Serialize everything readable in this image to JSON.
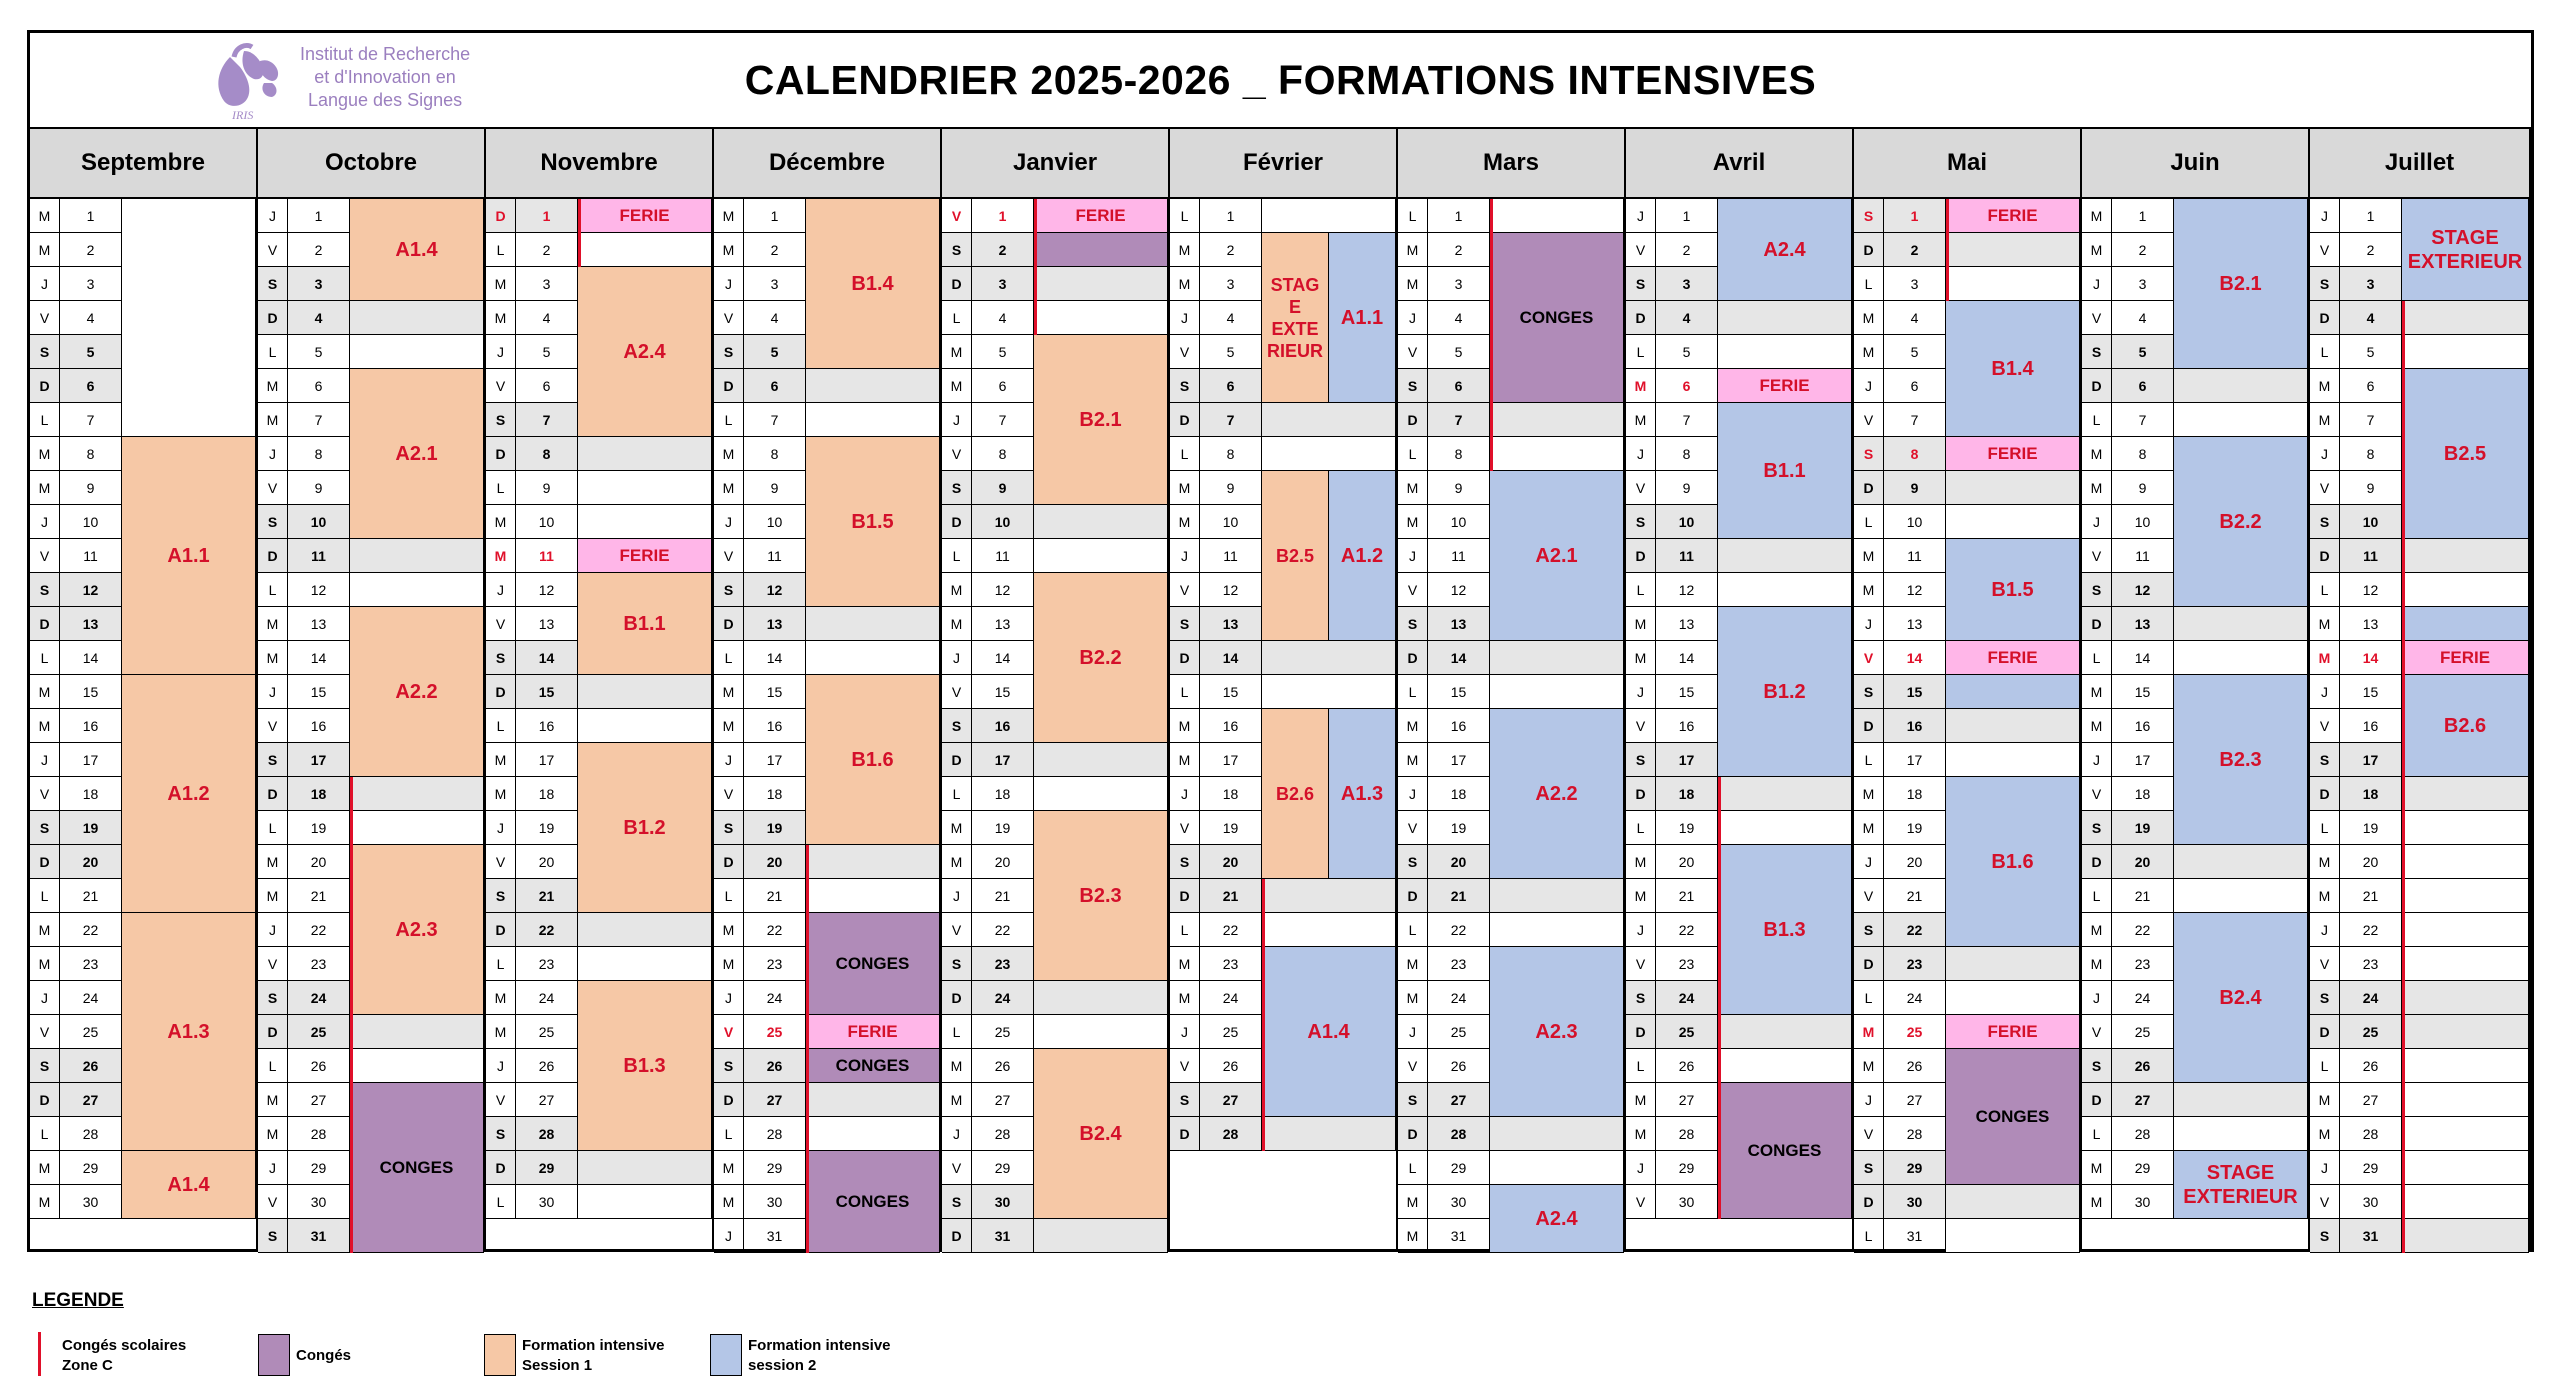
{
  "header": {
    "title": "CALENDRIER 2025-2026 _ FORMATIONS INTENSIVES",
    "logo_lines": [
      "Institut de Recherche",
      "et d'Innovation en",
      "Langue des Signes"
    ],
    "logo_acronym": "IRIS"
  },
  "colors": {
    "session1": "#f6c8a6",
    "session2": "#b4c6e7",
    "conges": "#b08bb8",
    "ferie": "#ffb6e8",
    "weekend": "#e6e6e6",
    "vacances_line": "#e0102a"
  },
  "months": [
    {
      "name": "Septembre",
      "days": 30,
      "start": 1,
      "holidays": [],
      "blocks": [
        {
          "from": 1,
          "to": 7,
          "type": "w",
          "label": ""
        },
        {
          "from": 8,
          "to": 14,
          "type": "s1",
          "label": "A1.1"
        },
        {
          "from": 15,
          "to": 21,
          "type": "s1",
          "label": "A1.2"
        },
        {
          "from": 22,
          "to": 28,
          "type": "s1",
          "label": "A1.3"
        },
        {
          "from": 29,
          "to": 30,
          "type": "s1",
          "label": "A1.4"
        }
      ],
      "vac": []
    },
    {
      "name": "Octobre",
      "days": 31,
      "start": 3,
      "holidays": [],
      "blocks": [
        {
          "from": 1,
          "to": 3,
          "type": "s1",
          "label": "A1.4"
        },
        {
          "from": 6,
          "to": 10,
          "type": "s1",
          "label": "A2.1"
        },
        {
          "from": 13,
          "to": 17,
          "type": "s1",
          "label": "A2.2"
        },
        {
          "from": 20,
          "to": 24,
          "type": "s1",
          "label": "A2.3"
        },
        {
          "from": 27,
          "to": 31,
          "type": "cg",
          "label": "CONGES"
        }
      ],
      "vac": [
        [
          18,
          31
        ]
      ]
    },
    {
      "name": "Novembre",
      "days": 30,
      "start": 6,
      "holidays": [
        1,
        11
      ],
      "blocks": [
        {
          "from": 1,
          "to": 1,
          "type": "fe",
          "label": "FERIE"
        },
        {
          "from": 3,
          "to": 7,
          "type": "s1",
          "label": "A2.4"
        },
        {
          "from": 11,
          "to": 11,
          "type": "fe",
          "label": "FERIE"
        },
        {
          "from": 12,
          "to": 14,
          "type": "s1",
          "label": "B1.1"
        },
        {
          "from": 17,
          "to": 21,
          "type": "s1",
          "label": "B1.2"
        },
        {
          "from": 24,
          "to": 28,
          "type": "s1",
          "label": "B1.3"
        }
      ],
      "vac": [
        [
          1,
          2
        ]
      ]
    },
    {
      "name": "Décembre",
      "days": 31,
      "start": 1,
      "holidays": [
        25
      ],
      "blocks": [
        {
          "from": 1,
          "to": 5,
          "type": "s1",
          "label": "B1.4"
        },
        {
          "from": 8,
          "to": 12,
          "type": "s1",
          "label": "B1.5"
        },
        {
          "from": 15,
          "to": 19,
          "type": "s1",
          "label": "B1.6"
        },
        {
          "from": 22,
          "to": 24,
          "type": "cg",
          "label": "CONGES"
        },
        {
          "from": 25,
          "to": 25,
          "type": "fe",
          "label": "FERIE"
        },
        {
          "from": 26,
          "to": 26,
          "type": "cg",
          "label": "CONGES"
        },
        {
          "from": 29,
          "to": 31,
          "type": "cg",
          "label": "CONGES"
        }
      ],
      "vac": [
        [
          20,
          31
        ]
      ]
    },
    {
      "name": "Janvier",
      "days": 31,
      "start": 4,
      "holidays": [
        1
      ],
      "blocks": [
        {
          "from": 1,
          "to": 1,
          "type": "fe",
          "label": "FERIE"
        },
        {
          "from": 2,
          "to": 2,
          "type": "cg",
          "label": ""
        },
        {
          "from": 5,
          "to": 9,
          "type": "s1",
          "label": "B2.1"
        },
        {
          "from": 12,
          "to": 16,
          "type": "s1",
          "label": "B2.2"
        },
        {
          "from": 19,
          "to": 23,
          "type": "s1",
          "label": "B2.3"
        },
        {
          "from": 26,
          "to": 30,
          "type": "s1",
          "label": "B2.4"
        }
      ],
      "vac": [
        [
          1,
          4
        ]
      ]
    },
    {
      "name": "Février",
      "days": 28,
      "start": 0,
      "holidays": [],
      "blocks": [
        {
          "from": 2,
          "to": 6,
          "type": "s1",
          "label": "STAG E EXTE RIEUR",
          "half": "left"
        },
        {
          "from": 2,
          "to": 6,
          "type": "s2",
          "label": "A1.1",
          "half": "right"
        },
        {
          "from": 9,
          "to": 13,
          "type": "s1",
          "label": "B2.5",
          "half": "left"
        },
        {
          "from": 9,
          "to": 13,
          "type": "s2",
          "label": "A1.2",
          "half": "right"
        },
        {
          "from": 16,
          "to": 20,
          "type": "s1",
          "label": "B2.6",
          "half": "left"
        },
        {
          "from": 16,
          "to": 20,
          "type": "s2",
          "label": "A1.3",
          "half": "right"
        },
        {
          "from": 23,
          "to": 27,
          "type": "s2",
          "label": "A1.4"
        }
      ],
      "vac": [
        [
          21,
          28
        ]
      ]
    },
    {
      "name": "Mars",
      "days": 31,
      "start": 0,
      "holidays": [],
      "blocks": [
        {
          "from": 2,
          "to": 6,
          "type": "cg",
          "label": "CONGES"
        },
        {
          "from": 9,
          "to": 13,
          "type": "s2",
          "label": "A2.1"
        },
        {
          "from": 16,
          "to": 20,
          "type": "s2",
          "label": "A2.2"
        },
        {
          "from": 23,
          "to": 27,
          "type": "s2",
          "label": "A2.3"
        },
        {
          "from": 30,
          "to": 31,
          "type": "s2",
          "label": "A2.4"
        }
      ],
      "vac": [
        [
          1,
          8
        ]
      ]
    },
    {
      "name": "Avril",
      "days": 30,
      "start": 3,
      "holidays": [
        6
      ],
      "blocks": [
        {
          "from": 1,
          "to": 3,
          "type": "s2",
          "label": "A2.4"
        },
        {
          "from": 6,
          "to": 6,
          "type": "fe",
          "label": "FERIE"
        },
        {
          "from": 7,
          "to": 10,
          "type": "s2",
          "label": "B1.1"
        },
        {
          "from": 13,
          "to": 17,
          "type": "s2",
          "label": "B1.2"
        },
        {
          "from": 20,
          "to": 24,
          "type": "s2",
          "label": "B1.3"
        },
        {
          "from": 27,
          "to": 30,
          "type": "cg",
          "label": "CONGES"
        }
      ],
      "vac": [
        [
          18,
          30
        ]
      ]
    },
    {
      "name": "Mai",
      "days": 31,
      "start": 5,
      "holidays": [
        1,
        8,
        14,
        25
      ],
      "blocks": [
        {
          "from": 1,
          "to": 1,
          "type": "fe",
          "label": "FERIE"
        },
        {
          "from": 4,
          "to": 7,
          "type": "s2",
          "label": "B1.4"
        },
        {
          "from": 8,
          "to": 8,
          "type": "fe",
          "label": "FERIE"
        },
        {
          "from": 11,
          "to": 13,
          "type": "s2",
          "label": "B1.5"
        },
        {
          "from": 14,
          "to": 14,
          "type": "fe",
          "label": "FERIE"
        },
        {
          "from": 15,
          "to": 15,
          "type": "s2",
          "label": ""
        },
        {
          "from": 18,
          "to": 22,
          "type": "s2",
          "label": "B1.6"
        },
        {
          "from": 25,
          "to": 25,
          "type": "fe",
          "label": "FERIE"
        },
        {
          "from": 26,
          "to": 29,
          "type": "cg",
          "label": "CONGES"
        }
      ],
      "vac": [
        [
          1,
          3
        ]
      ]
    },
    {
      "name": "Juin",
      "days": 30,
      "start": 1,
      "holidays": [],
      "blocks": [
        {
          "from": 1,
          "to": 5,
          "type": "s2",
          "label": "B2.1"
        },
        {
          "from": 8,
          "to": 12,
          "type": "s2",
          "label": "B2.2"
        },
        {
          "from": 15,
          "to": 19,
          "type": "s2",
          "label": "B2.3"
        },
        {
          "from": 22,
          "to": 26,
          "type": "s2",
          "label": "B2.4"
        },
        {
          "from": 29,
          "to": 30,
          "type": "s2",
          "label": "STAGE EXTERIEUR"
        }
      ],
      "vac": []
    },
    {
      "name": "Juillet",
      "days": 31,
      "start": 3,
      "holidays": [
        14
      ],
      "blocks": [
        {
          "from": 1,
          "to": 3,
          "type": "s2",
          "label": "STAGE EXTERIEUR"
        },
        {
          "from": 6,
          "to": 10,
          "type": "s2",
          "label": "B2.5"
        },
        {
          "from": 13,
          "to": 13,
          "type": "s2",
          "label": ""
        },
        {
          "from": 14,
          "to": 14,
          "type": "fe",
          "label": "FERIE"
        },
        {
          "from": 15,
          "to": 17,
          "type": "s2",
          "label": "B2.6"
        }
      ],
      "vac": [
        [
          4,
          31
        ]
      ]
    }
  ],
  "day_letters": [
    "L",
    "M",
    "M",
    "J",
    "V",
    "S",
    "D"
  ],
  "legend": {
    "title": "LEGENDE",
    "items": [
      {
        "label_1": "Congés scolaires",
        "label_2": "Zone C",
        "type": "vac"
      },
      {
        "label_1": "Congés",
        "label_2": "",
        "type": "cg"
      },
      {
        "label_1": "Formation intensive",
        "label_2": "Session 1",
        "type": "s1"
      },
      {
        "label_1": "Formation intensive",
        "label_2": "session 2",
        "type": "s2"
      }
    ]
  }
}
